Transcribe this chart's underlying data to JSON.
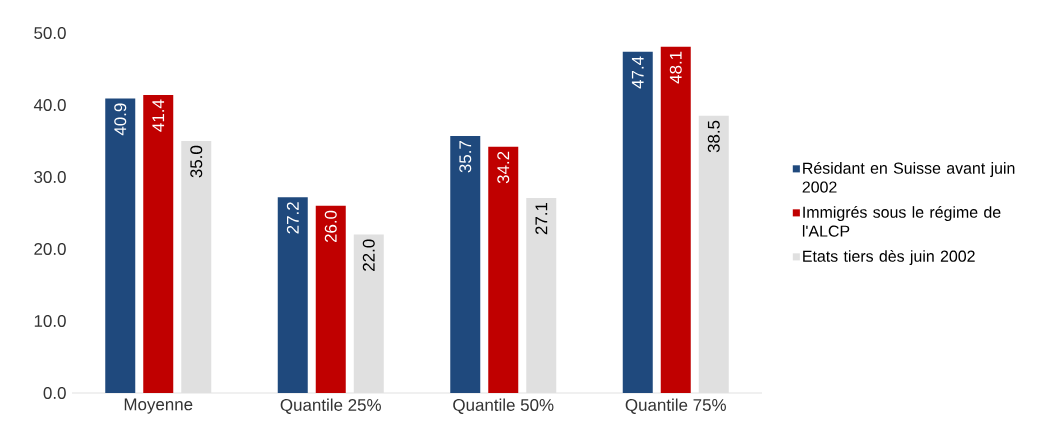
{
  "chart_data": {
    "type": "bar",
    "categories": [
      "Moyenne",
      "Quantile 25%",
      "Quantile 50%",
      "Quantile 75%"
    ],
    "series": [
      {
        "name": "Résidant en Suisse avant juin 2002",
        "color": "#1f497d",
        "values": [
          40.9,
          27.2,
          35.7,
          47.4
        ],
        "value_labels": [
          "40.9",
          "27.2",
          "35.7",
          "47.4"
        ]
      },
      {
        "name": "Immigrés sous le régime de l'ALCP",
        "color": "#c00000",
        "values": [
          41.4,
          26.0,
          34.2,
          48.1
        ],
        "value_labels": [
          "41.4",
          "26.0",
          "34.2",
          "48.1"
        ]
      },
      {
        "name": "Etats tiers dès juin 2002",
        "color": "#e0e0e0",
        "values": [
          35.0,
          22.0,
          27.1,
          38.5
        ],
        "value_labels": [
          "35.0",
          "22.0",
          "27.1",
          "38.5"
        ]
      }
    ],
    "ylim": [
      0,
      50
    ],
    "yticks": [
      {
        "value": 0,
        "label": "0.0"
      },
      {
        "value": 10,
        "label": "10.0"
      },
      {
        "value": 20,
        "label": "20.0"
      },
      {
        "value": 30,
        "label": "30.0"
      },
      {
        "value": 40,
        "label": "40.0"
      },
      {
        "value": 50,
        "label": "50.0"
      }
    ],
    "grid": false,
    "legend": "right"
  }
}
